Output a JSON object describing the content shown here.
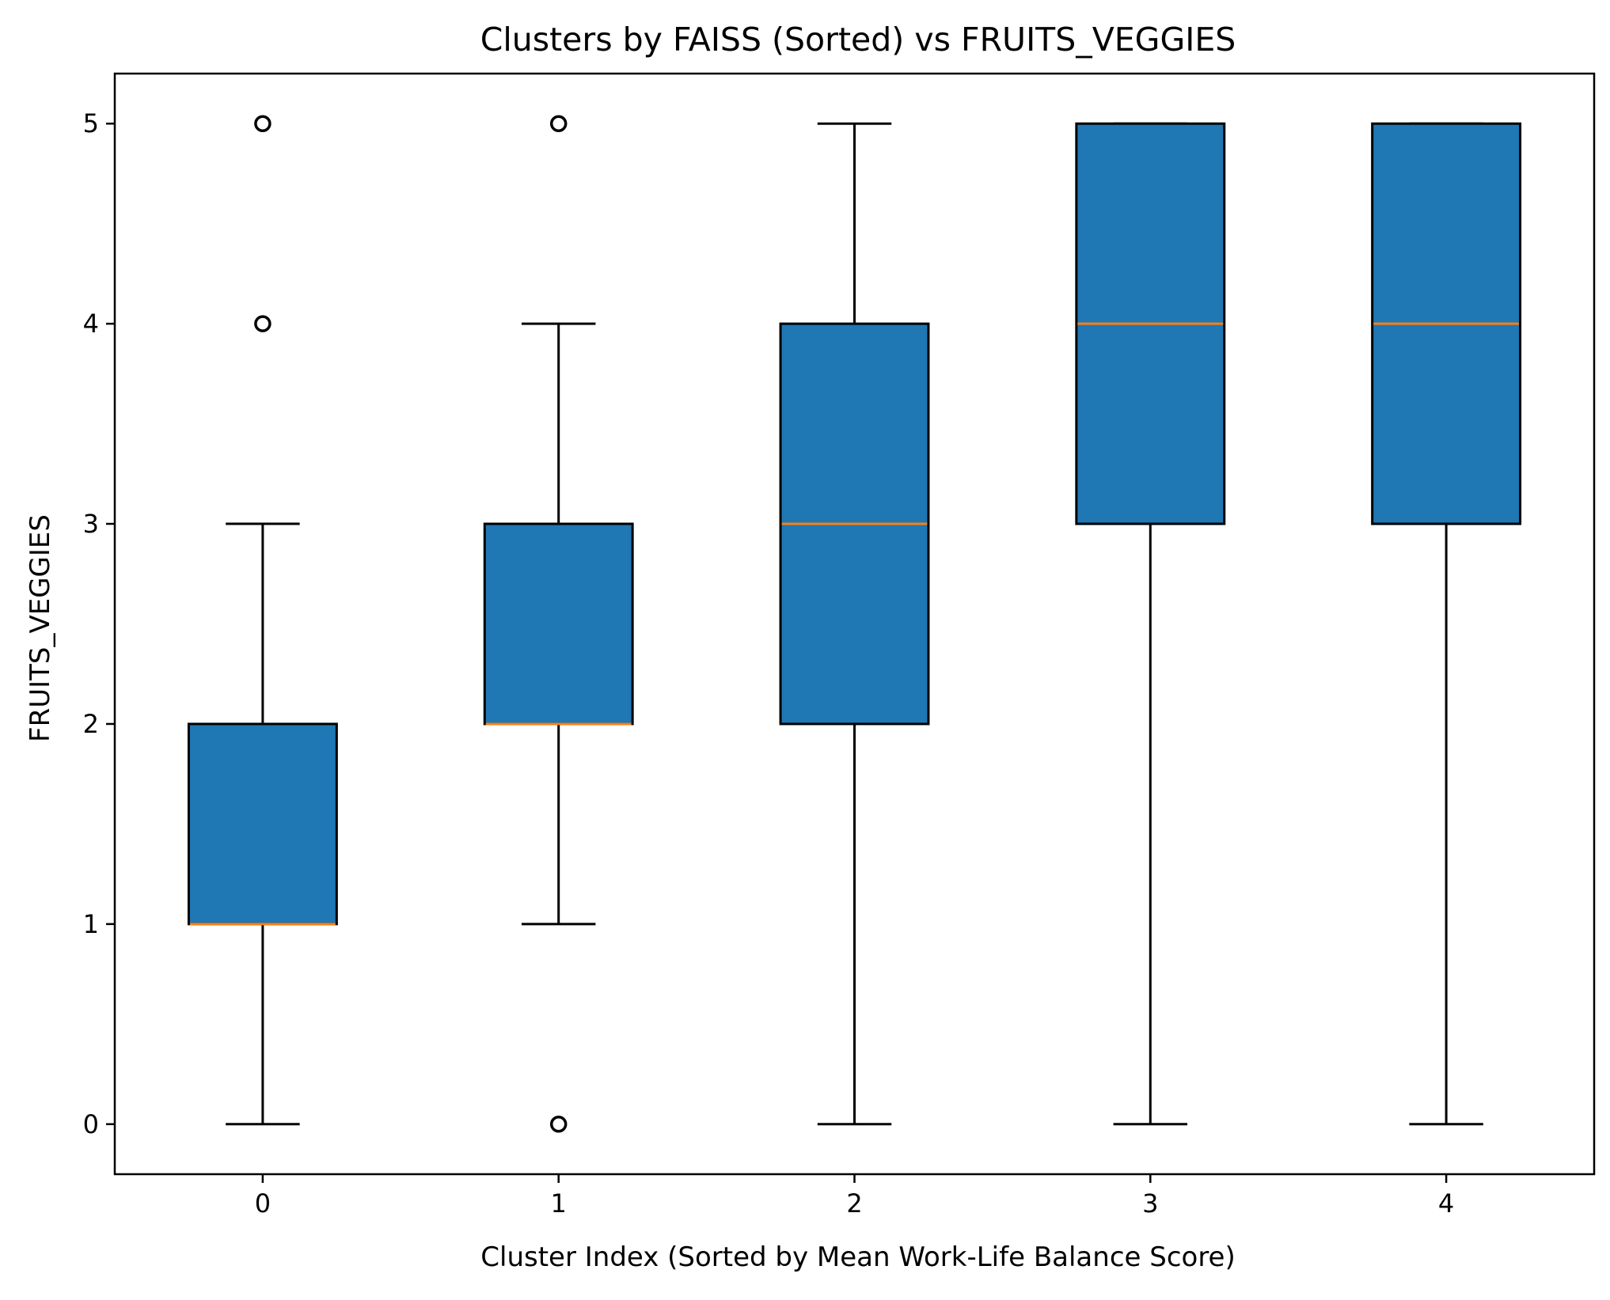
{
  "chart_data": {
    "type": "box",
    "title": "Clusters by FAISS (Sorted) vs FRUITS_VEGGIES",
    "xlabel": "Cluster Index (Sorted by Mean Work-Life Balance Score)",
    "ylabel": "FRUITS_VEGGIES",
    "categories": [
      "0",
      "1",
      "2",
      "3",
      "4"
    ],
    "xlim": [
      -0.5,
      4.5
    ],
    "ylim": [
      -0.25,
      5.25
    ],
    "yticks": [
      0,
      1,
      2,
      3,
      4,
      5
    ],
    "grid": false,
    "legend": "none",
    "boxes": [
      {
        "category": "0",
        "whisker_low": 0,
        "q1": 1,
        "median": 1,
        "q3": 2,
        "whisker_high": 3,
        "outliers": [
          4,
          5
        ]
      },
      {
        "category": "1",
        "whisker_low": 1,
        "q1": 2,
        "median": 2,
        "q3": 3,
        "whisker_high": 4,
        "outliers": [
          0,
          5
        ]
      },
      {
        "category": "2",
        "whisker_low": 0,
        "q1": 2,
        "median": 3,
        "q3": 4,
        "whisker_high": 5,
        "outliers": []
      },
      {
        "category": "3",
        "whisker_low": 0,
        "q1": 3,
        "median": 4,
        "q3": 5,
        "whisker_high": 5,
        "outliers": []
      },
      {
        "category": "4",
        "whisker_low": 0,
        "q1": 3,
        "median": 4,
        "q3": 5,
        "whisker_high": 5,
        "outliers": []
      }
    ],
    "colors": {
      "box_fill": "#1f77b4",
      "median": "#ff7f0e",
      "lines": "#000000"
    }
  }
}
